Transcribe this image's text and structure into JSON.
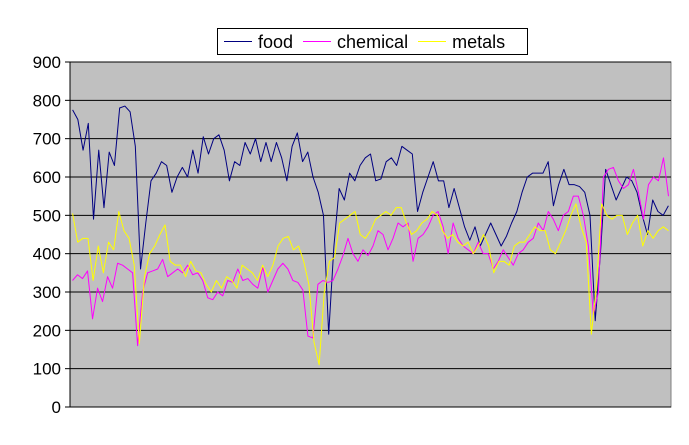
{
  "chart_data": {
    "type": "line",
    "title": "",
    "xlabel": "",
    "ylabel": "",
    "ylim": [
      0,
      900
    ],
    "yticks": [
      "0",
      "100",
      "200",
      "300",
      "400",
      "500",
      "600",
      "700",
      "800",
      "900"
    ],
    "grid": true,
    "legend_position": "top",
    "plot_background": "#c0c0c0",
    "series": [
      {
        "name": "food",
        "color": "#000080",
        "values": [
          775,
          750,
          670,
          740,
          490,
          670,
          520,
          665,
          630,
          780,
          785,
          770,
          680,
          360,
          480,
          590,
          610,
          640,
          630,
          560,
          600,
          625,
          600,
          670,
          610,
          705,
          660,
          700,
          710,
          670,
          590,
          640,
          630,
          690,
          660,
          700,
          640,
          690,
          640,
          690,
          650,
          590,
          680,
          715,
          640,
          665,
          600,
          560,
          500,
          190,
          420,
          570,
          540,
          610,
          590,
          630,
          650,
          660,
          590,
          595,
          640,
          650,
          630,
          680,
          670,
          660,
          510,
          560,
          600,
          640,
          590,
          590,
          520,
          570,
          520,
          470,
          435,
          470,
          420,
          450,
          480,
          450,
          420,
          445,
          480,
          510,
          560,
          600,
          610,
          610,
          610,
          640,
          525,
          580,
          620,
          580,
          580,
          575,
          560,
          500,
          225,
          400,
          620,
          580,
          540,
          570,
          600,
          590,
          560,
          500,
          450,
          540,
          510,
          500,
          525
        ]
      },
      {
        "name": "chemical",
        "color": "#ff00ff",
        "values": [
          330,
          345,
          335,
          355,
          230,
          310,
          275,
          340,
          310,
          375,
          370,
          360,
          350,
          160,
          300,
          350,
          355,
          360,
          385,
          340,
          350,
          360,
          350,
          370,
          345,
          350,
          330,
          285,
          280,
          300,
          290,
          330,
          325,
          360,
          330,
          335,
          320,
          310,
          365,
          300,
          330,
          360,
          375,
          360,
          330,
          325,
          305,
          185,
          180,
          320,
          330,
          325,
          330,
          360,
          395,
          440,
          400,
          380,
          410,
          395,
          420,
          460,
          450,
          410,
          440,
          480,
          470,
          480,
          380,
          440,
          450,
          470,
          500,
          510,
          470,
          400,
          480,
          440,
          420,
          410,
          400,
          430,
          400,
          400,
          360,
          380,
          410,
          390,
          370,
          400,
          410,
          430,
          440,
          480,
          460,
          510,
          490,
          460,
          500,
          510,
          550,
          550,
          500,
          420,
          240,
          300,
          600,
          620,
          625,
          590,
          570,
          580,
          620,
          560,
          490,
          580,
          600,
          590,
          650,
          550
        ]
      },
      {
        "name": "metals",
        "color": "#ffff00",
        "values": [
          505,
          430,
          440,
          440,
          330,
          420,
          350,
          430,
          410,
          510,
          460,
          440,
          370,
          165,
          340,
          400,
          420,
          450,
          475,
          380,
          370,
          370,
          340,
          380,
          355,
          350,
          320,
          300,
          330,
          310,
          340,
          330,
          310,
          370,
          360,
          350,
          330,
          370,
          340,
          370,
          420,
          440,
          445,
          410,
          420,
          380,
          320,
          170,
          110,
          300,
          380,
          390,
          480,
          490,
          500,
          510,
          450,
          440,
          460,
          490,
          500,
          510,
          500,
          520,
          520,
          480,
          450,
          460,
          480,
          490,
          510,
          500,
          460,
          440,
          450,
          430,
          420,
          430,
          400,
          420,
          450,
          420,
          350,
          380,
          380,
          370,
          420,
          430,
          430,
          450,
          470,
          460,
          460,
          410,
          400,
          430,
          460,
          500,
          530,
          470,
          430,
          190,
          320,
          530,
          500,
          490,
          500,
          500,
          450,
          480,
          500,
          420,
          460,
          440,
          460,
          470,
          460
        ]
      }
    ]
  }
}
